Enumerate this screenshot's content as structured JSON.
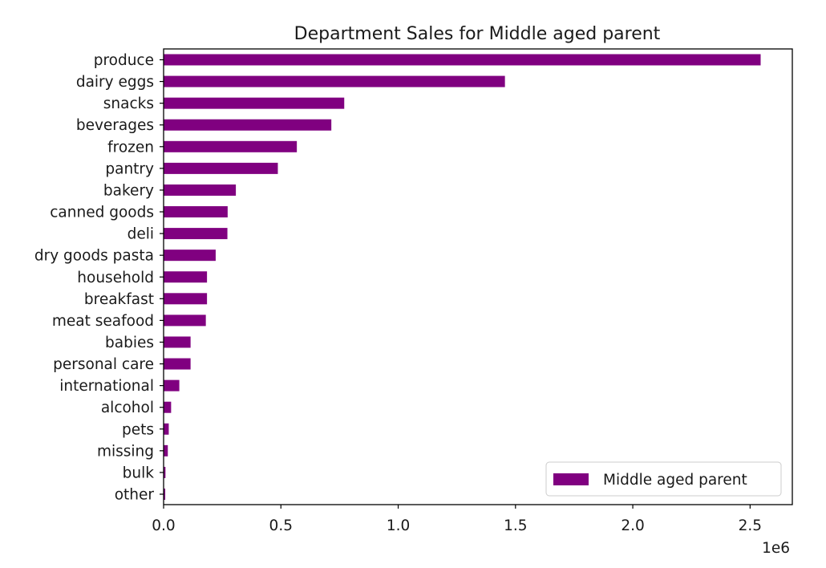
{
  "chart_data": {
    "type": "bar",
    "orientation": "horizontal",
    "title": "Department Sales for Middle aged parent",
    "xlabel": "",
    "ylabel": "",
    "x_offset_label": "1e6",
    "xlim": [
      0,
      2.68
    ],
    "x_ticks": [
      0.0,
      0.5,
      1.0,
      1.5,
      2.0,
      2.5
    ],
    "x_tick_labels": [
      "0.0",
      "0.5",
      "1.0",
      "1.5",
      "2.0",
      "2.5"
    ],
    "grid": false,
    "legend": {
      "position": "lower-right",
      "entries": [
        "Middle aged parent"
      ]
    },
    "categories": [
      "produce",
      "dairy eggs",
      "snacks",
      "beverages",
      "frozen",
      "pantry",
      "bakery",
      "canned goods",
      "deli",
      "dry goods pasta",
      "household",
      "breakfast",
      "meat seafood",
      "babies",
      "personal care",
      "international",
      "alcohol",
      "pets",
      "missing",
      "bulk",
      "other"
    ],
    "series": [
      {
        "name": "Middle aged parent",
        "color": "#800080",
        "values": [
          2.545,
          1.455,
          0.77,
          0.715,
          0.568,
          0.487,
          0.308,
          0.273,
          0.272,
          0.222,
          0.185,
          0.185,
          0.18,
          0.115,
          0.115,
          0.067,
          0.032,
          0.022,
          0.018,
          0.008,
          0.007
        ]
      }
    ]
  }
}
